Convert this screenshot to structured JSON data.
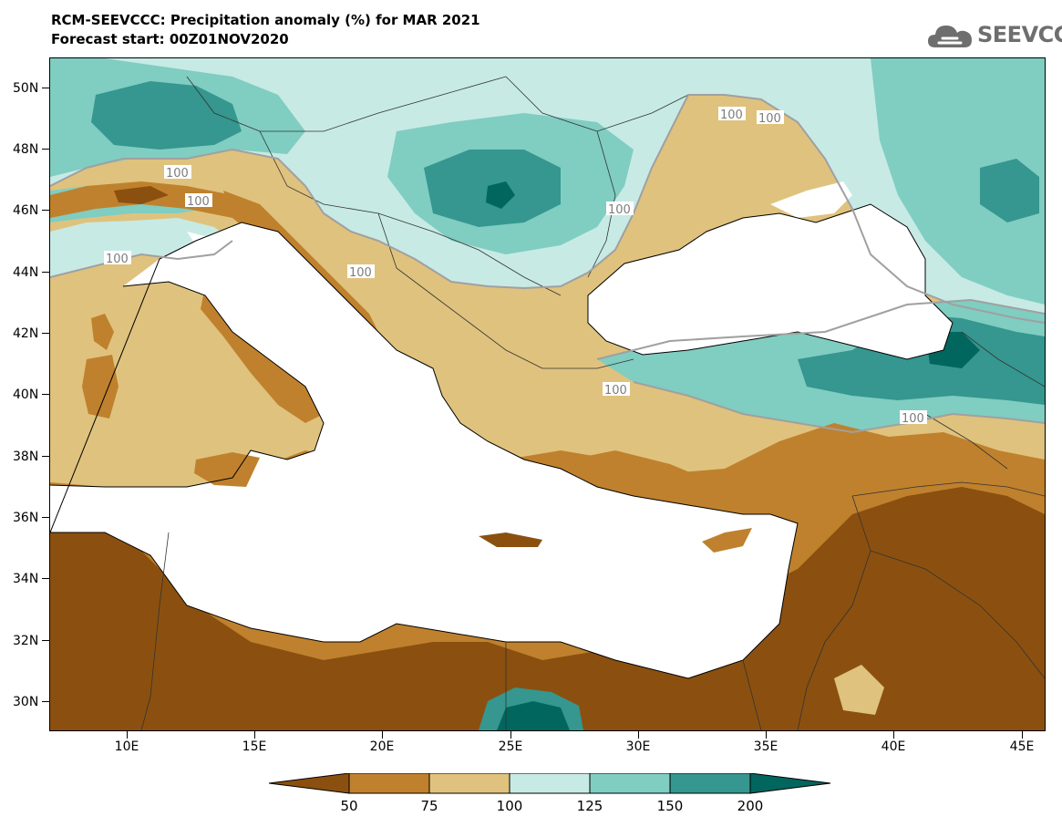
{
  "header": {
    "title": "RCM-SEEVCCC: Precipitation anomaly (%) for MAR 2021",
    "subtitle": "Forecast start: 00Z01NOV2020"
  },
  "logo": {
    "text": "SEEVCCC",
    "icon": "cloud-icon"
  },
  "map": {
    "lat_labels": [
      "50N",
      "48N",
      "46N",
      "44N",
      "42N",
      "40N",
      "38N",
      "36N",
      "34N",
      "32N",
      "30N"
    ],
    "lon_labels": [
      "10E",
      "15E",
      "20E",
      "25E",
      "30E",
      "35E",
      "40E",
      "45E"
    ],
    "contour_label": "100",
    "colors": {
      "very_dry": "#8b500f",
      "dry": "#bf812d",
      "slightly_dry": "#dfc27d",
      "slightly_wet": "#c7eae5",
      "wet": "#80cdc1",
      "very_wet": "#35978f",
      "extremely_wet": "#01665e",
      "sea": "#ffffff",
      "contour": "#a0a0a0"
    }
  },
  "colorbar": {
    "ticks": [
      "50",
      "75",
      "100",
      "125",
      "150",
      "200"
    ],
    "colors": [
      "#8b500f",
      "#bf812d",
      "#dfc27d",
      "#c7eae5",
      "#80cdc1",
      "#35978f",
      "#01665e"
    ]
  }
}
